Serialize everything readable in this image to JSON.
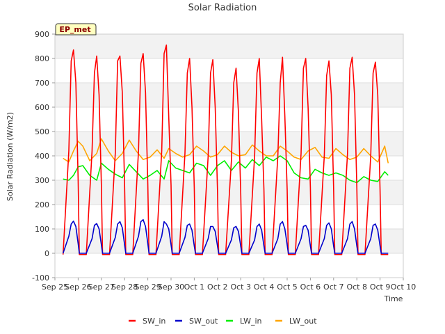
{
  "chart_data": {
    "type": "line",
    "title": "Solar Radiation",
    "xlabel": "Time",
    "ylabel": "Solar Radiation (W/m2)",
    "badge": "EP_met",
    "ylim": [
      -100,
      900
    ],
    "yticks": [
      -100,
      0,
      100,
      200,
      300,
      400,
      500,
      600,
      700,
      800,
      900
    ],
    "xlim": [
      0,
      15
    ],
    "xtick_labels": [
      "Sep 25",
      "Sep 26",
      "Sep 27",
      "Sep 28",
      "Sep 29",
      "Sep 30",
      "Oct 1",
      "Oct 2",
      "Oct 3",
      "Oct 4",
      "Oct 5",
      "Oct 6",
      "Oct 7",
      "Oct 8",
      "Oct 9",
      "Oct 10"
    ],
    "x_units": "days since Sep 25",
    "grid": true,
    "legend_position": "bottom",
    "series": [
      {
        "name": "SW_in",
        "color": "#ff0000",
        "x": [
          0.35,
          0.6,
          0.7,
          0.8,
          0.9,
          1.0,
          1.05,
          1.2,
          1.35,
          1.6,
          1.7,
          1.8,
          1.9,
          2.0,
          2.05,
          2.2,
          2.35,
          2.6,
          2.7,
          2.8,
          2.9,
          3.0,
          3.05,
          3.2,
          3.35,
          3.6,
          3.7,
          3.8,
          3.9,
          4.0,
          4.05,
          4.2,
          4.35,
          4.6,
          4.7,
          4.8,
          4.9,
          5.0,
          5.05,
          5.2,
          5.35,
          5.6,
          5.7,
          5.8,
          5.9,
          6.0,
          6.05,
          6.2,
          6.35,
          6.6,
          6.7,
          6.8,
          6.9,
          7.0,
          7.05,
          7.2,
          7.35,
          7.6,
          7.7,
          7.8,
          7.9,
          8.0,
          8.05,
          8.2,
          8.35,
          8.6,
          8.7,
          8.8,
          8.9,
          9.0,
          9.05,
          9.2,
          9.35,
          9.6,
          9.7,
          9.8,
          9.9,
          10.0,
          10.05,
          10.2,
          10.35,
          10.6,
          10.7,
          10.8,
          10.9,
          11.0,
          11.05,
          11.2,
          11.35,
          11.6,
          11.7,
          11.8,
          11.9,
          12.0,
          12.05,
          12.2,
          12.35,
          12.6,
          12.7,
          12.8,
          12.9,
          13.0,
          13.05,
          13.2,
          13.35,
          13.6,
          13.7,
          13.8,
          13.9,
          14.0,
          14.05,
          14.2,
          14.35
        ],
        "y": [
          -5,
          420,
          790,
          835,
          700,
          300,
          -5,
          -5,
          -5,
          420,
          740,
          810,
          650,
          280,
          -5,
          -5,
          -5,
          410,
          790,
          810,
          660,
          280,
          -5,
          -5,
          -5,
          420,
          780,
          820,
          660,
          280,
          -5,
          -5,
          -5,
          420,
          820,
          855,
          560,
          280,
          -5,
          -5,
          -5,
          410,
          740,
          800,
          600,
          270,
          -5,
          -5,
          -5,
          400,
          740,
          795,
          600,
          260,
          -5,
          -5,
          -5,
          380,
          700,
          760,
          580,
          250,
          -5,
          -5,
          -5,
          400,
          740,
          800,
          550,
          260,
          -5,
          -5,
          -5,
          400,
          700,
          805,
          560,
          260,
          -5,
          -5,
          -5,
          410,
          760,
          800,
          600,
          270,
          -5,
          -5,
          -5,
          400,
          730,
          790,
          650,
          270,
          -5,
          -5,
          -5,
          410,
          760,
          805,
          650,
          270,
          -5,
          -5,
          -5,
          400,
          740,
          785,
          650,
          260,
          -5,
          -5,
          -5
        ]
      },
      {
        "name": "SW_out",
        "color": "#0000cc",
        "x": [
          0.35,
          0.6,
          0.7,
          0.8,
          0.9,
          1.0,
          1.05,
          1.35,
          1.6,
          1.7,
          1.8,
          1.9,
          2.0,
          2.05,
          2.35,
          2.6,
          2.7,
          2.8,
          2.9,
          3.0,
          3.05,
          3.35,
          3.6,
          3.7,
          3.8,
          3.9,
          4.0,
          4.05,
          4.35,
          4.6,
          4.7,
          4.8,
          4.9,
          5.0,
          5.05,
          5.35,
          5.6,
          5.7,
          5.8,
          5.9,
          6.0,
          6.05,
          6.35,
          6.6,
          6.7,
          6.8,
          6.9,
          7.0,
          7.05,
          7.35,
          7.6,
          7.7,
          7.8,
          7.9,
          8.0,
          8.05,
          8.35,
          8.6,
          8.7,
          8.8,
          8.9,
          9.0,
          9.05,
          9.35,
          9.6,
          9.7,
          9.8,
          9.9,
          10.0,
          10.05,
          10.35,
          10.6,
          10.7,
          10.8,
          10.9,
          11.0,
          11.05,
          11.35,
          11.6,
          11.7,
          11.8,
          11.9,
          12.0,
          12.05,
          12.35,
          12.6,
          12.7,
          12.8,
          12.9,
          13.0,
          13.05,
          13.35,
          13.6,
          13.7,
          13.8,
          13.9,
          14.0,
          14.05,
          14.35
        ],
        "y": [
          0,
          70,
          120,
          132,
          110,
          40,
          0,
          0,
          60,
          115,
          122,
          100,
          35,
          0,
          0,
          65,
          120,
          130,
          105,
          35,
          0,
          0,
          70,
          130,
          138,
          110,
          40,
          0,
          0,
          70,
          130,
          120,
          100,
          35,
          0,
          0,
          65,
          115,
          120,
          95,
          30,
          0,
          0,
          60,
          110,
          110,
          90,
          30,
          0,
          0,
          55,
          105,
          110,
          90,
          30,
          0,
          0,
          55,
          110,
          120,
          95,
          30,
          0,
          0,
          60,
          120,
          130,
          100,
          35,
          0,
          0,
          60,
          110,
          115,
          95,
          30,
          0,
          0,
          60,
          115,
          125,
          100,
          30,
          0,
          0,
          60,
          120,
          130,
          100,
          30,
          0,
          0,
          60,
          115,
          120,
          95,
          30,
          0,
          0
        ]
      },
      {
        "name": "LW_in",
        "color": "#00ee00",
        "x": [
          0.35,
          0.6,
          0.8,
          1.0,
          1.2,
          1.5,
          1.8,
          2.0,
          2.3,
          2.6,
          2.9,
          3.2,
          3.5,
          3.8,
          4.1,
          4.4,
          4.7,
          4.9,
          5.2,
          5.5,
          5.8,
          6.1,
          6.4,
          6.7,
          7.0,
          7.3,
          7.6,
          7.9,
          8.2,
          8.5,
          8.8,
          9.1,
          9.4,
          9.7,
          10.0,
          10.3,
          10.6,
          10.9,
          11.2,
          11.5,
          11.8,
          12.1,
          12.4,
          12.7,
          13.0,
          13.3,
          13.6,
          13.9,
          14.2,
          14.35
        ],
        "y": [
          305,
          300,
          320,
          355,
          360,
          320,
          300,
          370,
          345,
          325,
          310,
          365,
          335,
          305,
          320,
          340,
          305,
          380,
          350,
          340,
          330,
          370,
          360,
          320,
          360,
          380,
          340,
          375,
          350,
          385,
          360,
          395,
          380,
          400,
          380,
          330,
          310,
          305,
          345,
          330,
          320,
          330,
          320,
          300,
          290,
          315,
          300,
          295,
          335,
          320
        ]
      },
      {
        "name": "LW_out",
        "color": "#ffa500",
        "x": [
          0.35,
          0.6,
          0.8,
          1.0,
          1.2,
          1.5,
          1.8,
          2.0,
          2.3,
          2.6,
          2.9,
          3.2,
          3.5,
          3.8,
          4.1,
          4.4,
          4.7,
          4.9,
          5.2,
          5.5,
          5.8,
          6.1,
          6.4,
          6.7,
          7.0,
          7.3,
          7.6,
          7.9,
          8.2,
          8.5,
          8.8,
          9.1,
          9.4,
          9.7,
          10.0,
          10.3,
          10.6,
          10.9,
          11.2,
          11.5,
          11.8,
          12.1,
          12.4,
          12.7,
          13.0,
          13.3,
          13.6,
          13.9,
          14.2,
          14.35
        ],
        "y": [
          390,
          375,
          420,
          460,
          440,
          380,
          410,
          470,
          420,
          380,
          410,
          465,
          420,
          385,
          395,
          425,
          390,
          430,
          410,
          395,
          405,
          440,
          420,
          395,
          405,
          440,
          415,
          400,
          405,
          445,
          420,
          400,
          400,
          440,
          420,
          395,
          385,
          420,
          435,
          395,
          390,
          430,
          405,
          385,
          395,
          430,
          400,
          375,
          440,
          370
        ]
      }
    ]
  }
}
